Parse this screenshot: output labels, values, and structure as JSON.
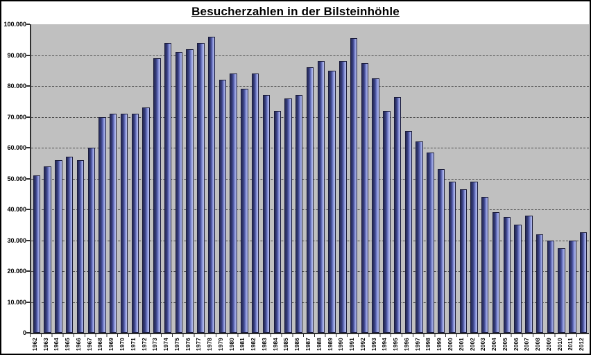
{
  "title": "Besucherzahlen in der Bilsteinhöhle",
  "chart_data": {
    "type": "bar",
    "title": "Besucherzahlen in der Bilsteinhöhle",
    "xlabel": "",
    "ylabel": "",
    "legend": "none",
    "grid": "horizontal-dashed",
    "ylim": [
      0,
      100000
    ],
    "ytick_step": 10000,
    "ytick_labels_top_to_bottom": [
      "100.000",
      "90.000",
      "80.000",
      "70.000",
      "60.000",
      "50.000",
      "40.000",
      "30.000",
      "20.000",
      "10.000",
      "0"
    ],
    "categories": [
      "1962",
      "1963",
      "1964",
      "1965",
      "1966",
      "1967",
      "1968",
      "1969",
      "1970",
      "1971",
      "1972",
      "1973",
      "1974",
      "1975",
      "1976",
      "1977",
      "1978",
      "1979",
      "1980",
      "1981",
      "1982",
      "1983",
      "1984",
      "1985",
      "1986",
      "1987",
      "1988",
      "1989",
      "1990",
      "1991",
      "1992",
      "1993",
      "1994",
      "1995",
      "1996",
      "1997",
      "1998",
      "1999",
      "2000",
      "2001",
      "2002",
      "2003",
      "2004",
      "2005",
      "2006",
      "2007",
      "2008",
      "2009",
      "2010",
      "2011",
      "2012"
    ],
    "values": [
      51000,
      54000,
      56000,
      57000,
      56000,
      60000,
      70000,
      71000,
      71000,
      71000,
      73000,
      89000,
      94000,
      91000,
      92000,
      94000,
      96000,
      82000,
      84000,
      79000,
      84000,
      77000,
      72000,
      76000,
      77000,
      86000,
      88000,
      85000,
      88000,
      95500,
      87500,
      82500,
      72000,
      76500,
      65500,
      62000,
      58500,
      53000,
      49000,
      46500,
      49000,
      44000,
      39000,
      37500,
      35000,
      38000,
      32000,
      30000,
      27500,
      30000,
      32500
    ],
    "colors": {
      "plot_background": "#c0c0c0",
      "bar_gradient_dark": "#272c5e",
      "bar_gradient_light": "#b9c1f0",
      "bar_border": "#1a1b3a",
      "gridline": "#4a4a4a",
      "axis": "#303030",
      "frame_border": "#000000",
      "page_background": "#ffffff",
      "text": "#000000"
    }
  }
}
